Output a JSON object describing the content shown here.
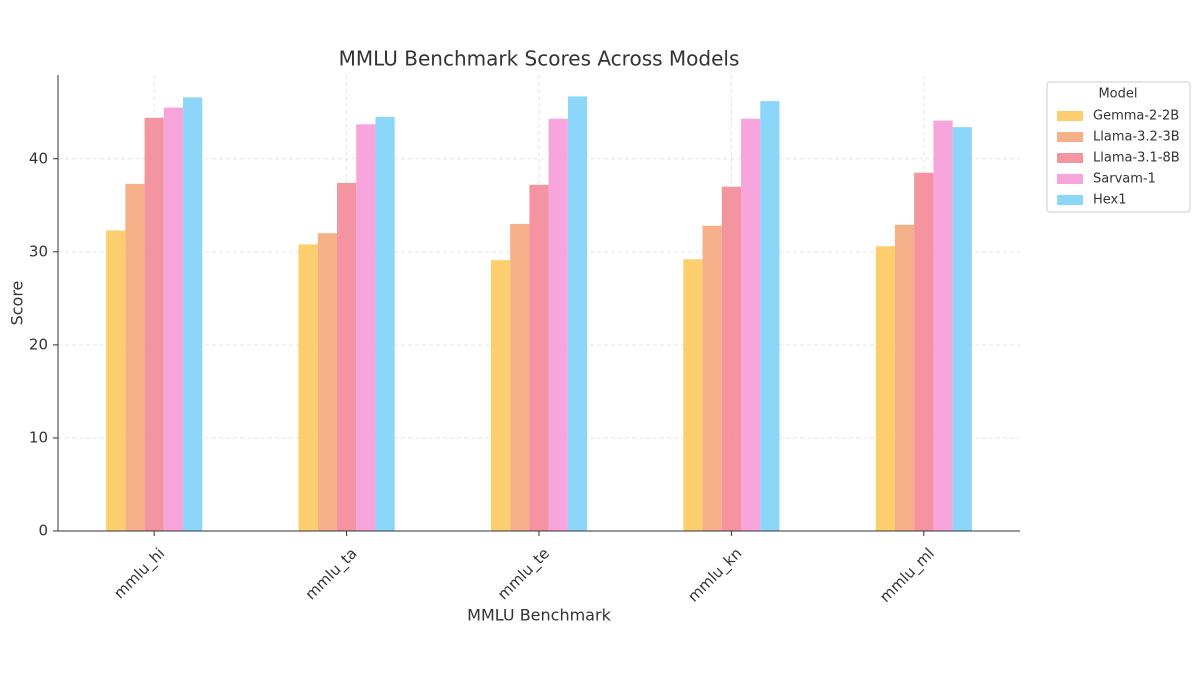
{
  "chart_data": {
    "type": "bar",
    "title": "MMLU Benchmark Scores Across Models",
    "x_label": "MMLU Benchmark",
    "y_label": "Score",
    "categories": [
      "mmlu_hi",
      "mmlu_ta",
      "mmlu_te",
      "mmlu_kn",
      "mmlu_ml"
    ],
    "legend_title": "Model",
    "legend_position": "outside-right",
    "series": [
      {
        "name": "Gemma-2-2B",
        "color": "#fdc95e",
        "values": [
          32.3,
          30.8,
          29.1,
          29.2,
          30.6
        ]
      },
      {
        "name": "Llama-3.2-3B",
        "color": "#f5a77b",
        "values": [
          37.3,
          32.0,
          33.0,
          32.8,
          32.9
        ]
      },
      {
        "name": "Llama-3.1-8B",
        "color": "#f38896",
        "values": [
          44.4,
          37.4,
          37.2,
          37.0,
          38.5
        ]
      },
      {
        "name": "Sarvam-1",
        "color": "#f79ad9",
        "values": [
          45.5,
          43.7,
          44.3,
          44.3,
          44.1
        ]
      },
      {
        "name": "Hex1",
        "color": "#7fd3f8",
        "values": [
          46.6,
          44.5,
          46.7,
          46.2,
          43.4
        ]
      }
    ],
    "ylim": [
      0,
      49
    ],
    "yticks": [
      0,
      10,
      20,
      30,
      40
    ],
    "grid": true
  }
}
